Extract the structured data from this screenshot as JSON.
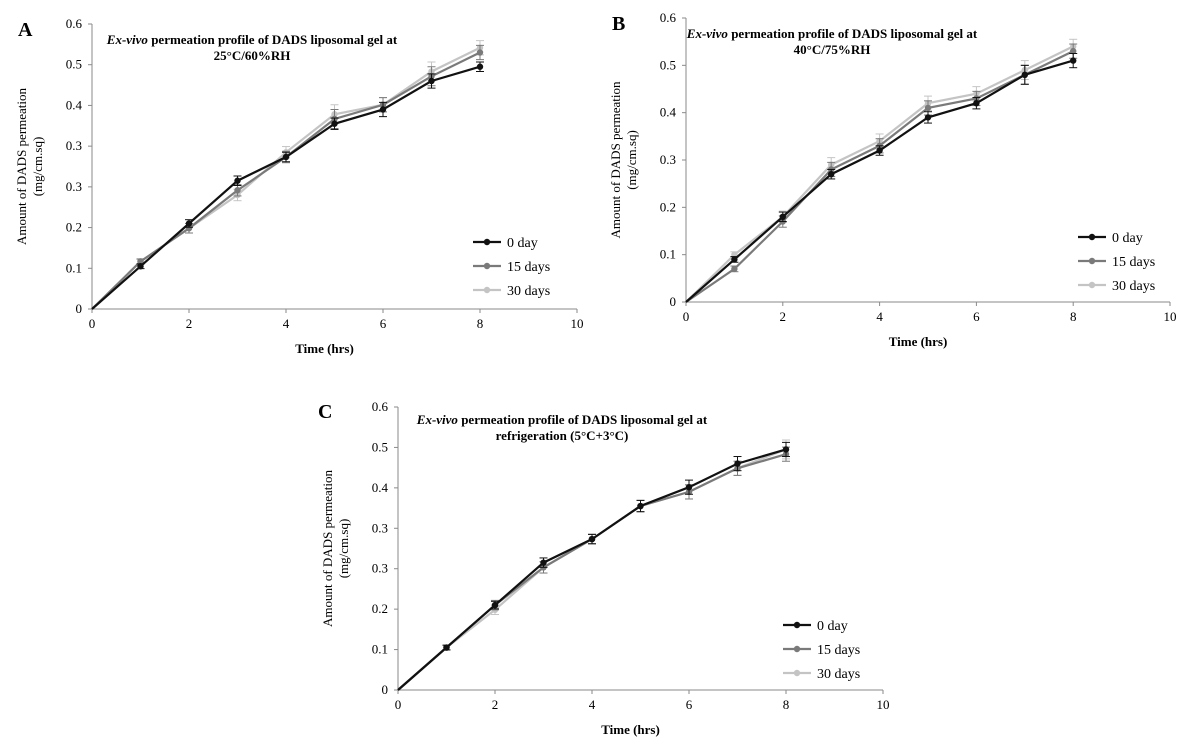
{
  "chart_data": [
    {
      "panel_label": "A",
      "type": "line",
      "title_italic": "Ex-vivo",
      "title_line1": " permeation profile of DADS liposomal gel at",
      "title_line2": "25°C/60%RH",
      "xlabel": "Time (hrs)",
      "ylabel_line1": "Amount of DADS permeation",
      "ylabel_line2": "(mg/cm.sq)",
      "xlim": [
        0,
        10
      ],
      "ylim": [
        0,
        0.6
      ],
      "x_ticks": [
        "0",
        "2",
        "4",
        "6",
        "8",
        "10"
      ],
      "y_ticks": [
        "0",
        "0.1",
        "0.2",
        "0.3",
        "0.3",
        "0.4",
        "0.5",
        "0.6"
      ],
      "legend_position": "bottom-right",
      "x": [
        0,
        1,
        2,
        3,
        4,
        5,
        6,
        7,
        8
      ],
      "series": [
        {
          "name": "0 day",
          "values": [
            0,
            0.09,
            0.18,
            0.27,
            0.32,
            0.39,
            0.42,
            0.48,
            0.51
          ],
          "errors": [
            0,
            0.005,
            0.008,
            0.01,
            0.01,
            0.012,
            0.015,
            0.015,
            0.01
          ]
        },
        {
          "name": "15 days",
          "values": [
            0,
            0.1,
            0.17,
            0.25,
            0.32,
            0.4,
            0.43,
            0.49,
            0.54
          ],
          "errors": [
            0,
            0.005,
            0.01,
            0.012,
            0.012,
            0.02,
            0.015,
            0.02,
            0.015
          ]
        },
        {
          "name": "30 days",
          "values": [
            0,
            0.1,
            0.17,
            0.24,
            0.33,
            0.41,
            0.43,
            0.5,
            0.55
          ],
          "errors": [
            0,
            0.006,
            0.01,
            0.012,
            0.012,
            0.02,
            0.015,
            0.02,
            0.015
          ]
        }
      ]
    },
    {
      "panel_label": "B",
      "type": "line",
      "title_italic": "Ex-vivo",
      "title_line1": " permeation profile of DADS liposomal gel at",
      "title_line2": "40°C/75%RH",
      "xlabel": "Time (hrs)",
      "ylabel_line1": "Amount of DADS permeation",
      "ylabel_line2": "(mg/cm.sq)",
      "xlim": [
        0,
        10
      ],
      "ylim": [
        0,
        0.6
      ],
      "x_ticks": [
        "0",
        "2",
        "4",
        "6",
        "8",
        "10"
      ],
      "y_ticks": [
        "0",
        "0.1",
        "0.2",
        "0.3",
        "0.4",
        "0.5",
        "0.6"
      ],
      "legend_position": "bottom-right",
      "x": [
        0,
        1,
        2,
        3,
        4,
        5,
        6,
        7,
        8
      ],
      "series": [
        {
          "name": "0 day",
          "values": [
            0,
            0.09,
            0.18,
            0.27,
            0.32,
            0.39,
            0.42,
            0.48,
            0.51
          ],
          "errors": [
            0,
            0.006,
            0.01,
            0.01,
            0.01,
            0.012,
            0.012,
            0.02,
            0.015
          ]
        },
        {
          "name": "15 days",
          "values": [
            0,
            0.07,
            0.17,
            0.28,
            0.33,
            0.41,
            0.43,
            0.48,
            0.53
          ],
          "errors": [
            0,
            0.006,
            0.012,
            0.015,
            0.015,
            0.015,
            0.015,
            0.02,
            0.015
          ]
        },
        {
          "name": "30 days",
          "values": [
            0,
            0.1,
            0.18,
            0.29,
            0.34,
            0.42,
            0.44,
            0.49,
            0.54
          ],
          "errors": [
            0,
            0.006,
            0.012,
            0.015,
            0.015,
            0.015,
            0.015,
            0.02,
            0.015
          ]
        }
      ]
    },
    {
      "panel_label": "C",
      "type": "line",
      "title_italic": "Ex-vivo",
      "title_line1": " permeation profile of DADS liposomal gel at",
      "title_line2": "refrigeration (5°C+3°C)",
      "xlabel": "Time (hrs)",
      "ylabel_line1": "Amount of DADS permeation",
      "ylabel_line2": "(mg/cm.sq)",
      "xlim": [
        0,
        10
      ],
      "ylim": [
        0,
        0.6
      ],
      "x_ticks": [
        "0",
        "2",
        "4",
        "6",
        "8",
        "10"
      ],
      "y_ticks": [
        "0",
        "0.1",
        "0.2",
        "0.3",
        "0.3",
        "0.4",
        "0.5",
        "0.6"
      ],
      "legend_position": "bottom-right",
      "x": [
        0,
        1,
        2,
        3,
        4,
        5,
        6,
        7,
        8
      ],
      "series": [
        {
          "name": "0 day",
          "values": [
            0,
            0.09,
            0.18,
            0.27,
            0.32,
            0.39,
            0.43,
            0.48,
            0.51
          ],
          "errors": [
            0,
            0.005,
            0.008,
            0.01,
            0.01,
            0.012,
            0.015,
            0.015,
            0.015
          ]
        },
        {
          "name": "15 days",
          "values": [
            0,
            0.09,
            0.18,
            0.26,
            0.32,
            0.39,
            0.42,
            0.47,
            0.5
          ],
          "errors": [
            0,
            0.005,
            0.01,
            0.012,
            0.01,
            0.012,
            0.015,
            0.015,
            0.015
          ]
        },
        {
          "name": "30 days",
          "values": [
            0,
            0.09,
            0.17,
            0.26,
            0.32,
            0.39,
            0.42,
            0.47,
            0.51
          ],
          "errors": [
            0,
            0.005,
            0.01,
            0.012,
            0.01,
            0.012,
            0.015,
            0.015,
            0.02
          ]
        }
      ]
    }
  ],
  "colors": {
    "series": [
      "#111111",
      "#7a7a7a",
      "#c4c4c4"
    ],
    "axis": "#8a8a8a",
    "text": "#000000"
  }
}
